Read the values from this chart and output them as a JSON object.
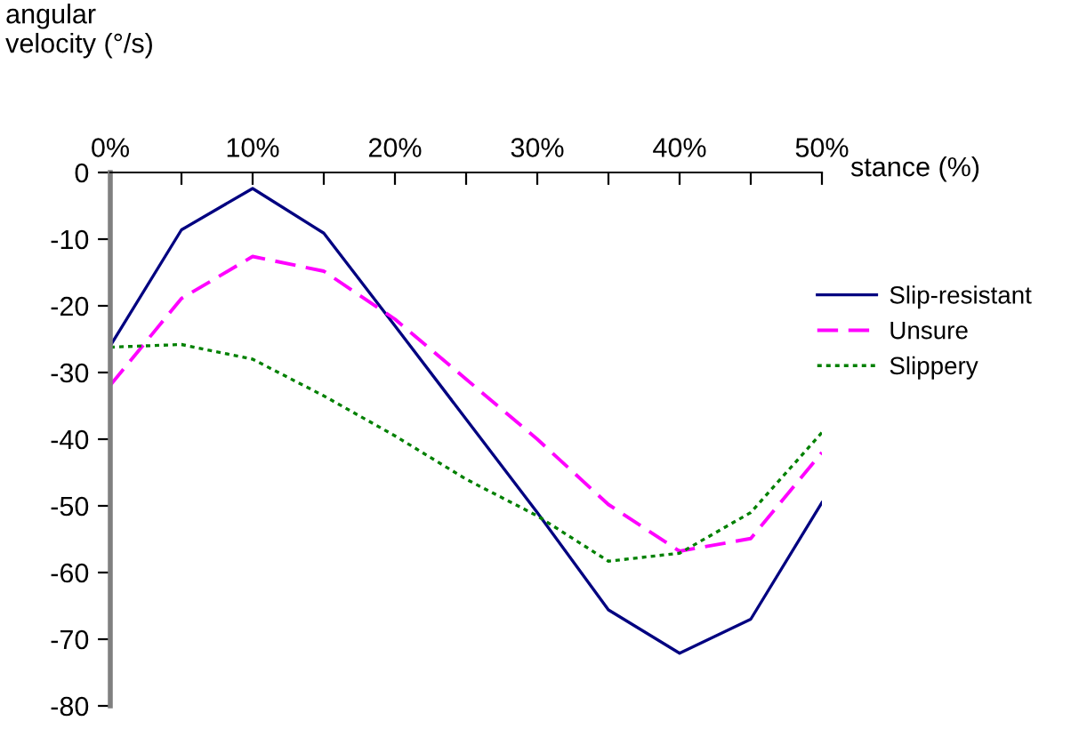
{
  "chart_data": {
    "type": "line",
    "xlabel": "stance (%)",
    "ylabel": "angular\nvelocity (°/s)",
    "x": [
      0,
      5,
      10,
      15,
      20,
      25,
      30,
      35,
      40,
      45,
      50
    ],
    "series": [
      {
        "name": "Slip-resistant",
        "color": "#000080",
        "line_style": "solid",
        "values": [
          -26,
          -8.6,
          -2.4,
          -9.1,
          -23,
          -37,
          -51,
          -65.6,
          -72.1,
          -67,
          -49.5
        ]
      },
      {
        "name": "Unsure",
        "color": "#ff00ff",
        "line_style": "dashed",
        "values": [
          -31.9,
          -18.9,
          -12.6,
          -14.8,
          -22,
          -31,
          -40,
          -49.8,
          -56.8,
          -54.9,
          -42
        ]
      },
      {
        "name": "Slippery",
        "color": "#008000",
        "line_style": "dotted",
        "values": [
          -26.2,
          -25.8,
          -28,
          -33.5,
          -39.5,
          -46,
          -51.5,
          -58.3,
          -57.1,
          -51,
          -39
        ]
      }
    ],
    "xlim": [
      0,
      50
    ],
    "ylim": [
      -80,
      0
    ],
    "xticks": [
      {
        "value": 0,
        "label": "0%"
      },
      {
        "value": 5,
        "label": null
      },
      {
        "value": 10,
        "label": "10%"
      },
      {
        "value": 15,
        "label": null
      },
      {
        "value": 20,
        "label": "20%"
      },
      {
        "value": 25,
        "label": null
      },
      {
        "value": 30,
        "label": "30%"
      },
      {
        "value": 35,
        "label": null
      },
      {
        "value": 40,
        "label": "40%"
      },
      {
        "value": 45,
        "label": null
      },
      {
        "value": 50,
        "label": "50%"
      }
    ],
    "yticks": [
      0,
      -10,
      -20,
      -30,
      -40,
      -50,
      -60,
      -70,
      -80
    ],
    "grid": false,
    "legend": "right",
    "marker": "none"
  }
}
